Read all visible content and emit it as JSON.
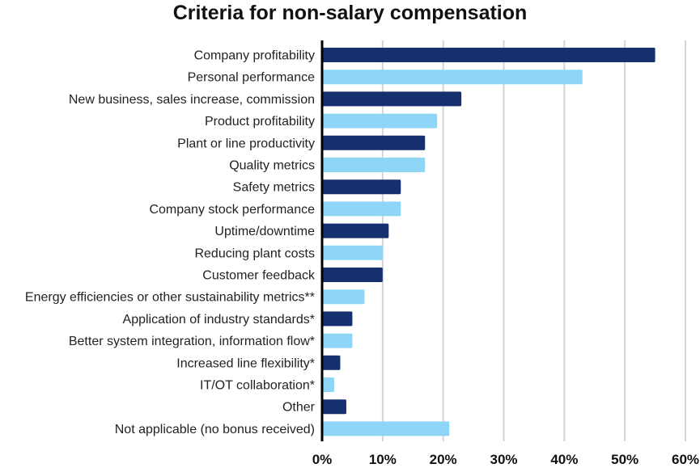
{
  "chart_data": {
    "type": "bar",
    "orientation": "horizontal",
    "title": "Criteria for non-salary compensation",
    "xlabel": "",
    "ylabel": "",
    "categories": [
      "Company profitability",
      "Personal performance",
      "New business, sales increase, commission",
      "Product profitability",
      "Plant or line productivity",
      "Quality metrics",
      "Safety metrics",
      "Company stock performance",
      "Uptime/downtime",
      "Reducing plant costs",
      "Customer feedback",
      "Energy efficiencies or other sustainability metrics**",
      "Application of industry standards*",
      "Better system integration, information flow*",
      "Increased line flexibility*",
      "IT/OT collaboration*",
      "Other",
      "Not applicable (no bonus received)"
    ],
    "values": [
      55,
      43,
      23,
      19,
      17,
      17,
      13,
      13,
      11,
      10,
      10,
      7,
      5,
      5,
      3,
      2,
      4,
      21
    ],
    "xlim": [
      0,
      60
    ],
    "x_ticks": [
      "0%",
      "10%",
      "20%",
      "30%",
      "40%",
      "50%",
      "60%"
    ],
    "grid": true,
    "colors": {
      "dark": "#14306e",
      "light": "#8ed6f7",
      "grid": "#d3d3d3",
      "axis": "#000000"
    }
  }
}
